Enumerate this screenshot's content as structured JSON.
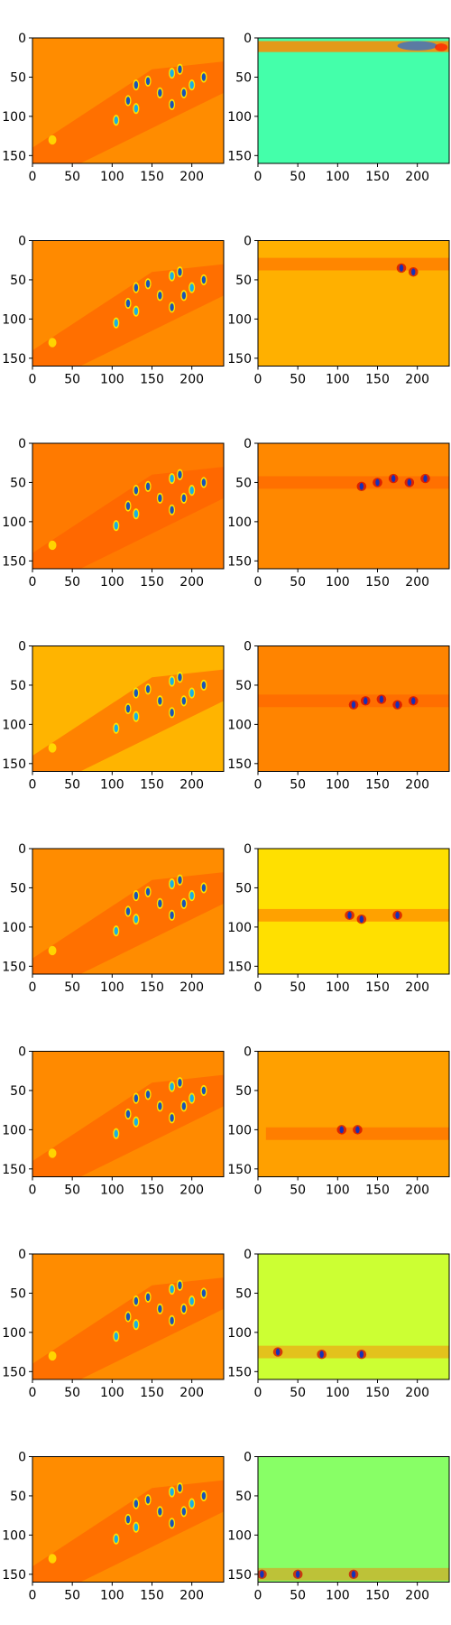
{
  "figure": {
    "rows": 8,
    "cols": 2,
    "colormap": "jet"
  },
  "chart_data": [
    {
      "row": 1,
      "col": 1,
      "type": "heatmap",
      "background": "#ff8c00",
      "xticks": [
        0,
        50,
        100,
        150,
        200
      ],
      "yticks": [
        0,
        50,
        100,
        150
      ],
      "xlim": [
        0,
        240
      ],
      "ylim": [
        160,
        0
      ]
    },
    {
      "row": 1,
      "col": 2,
      "type": "heatmap",
      "background": "#44ffaa",
      "xticks": [
        0,
        50,
        100,
        150,
        200
      ],
      "yticks": [
        0,
        50,
        100,
        150
      ],
      "xlim": [
        0,
        240
      ],
      "ylim": [
        160,
        0
      ]
    },
    {
      "row": 2,
      "col": 1,
      "type": "heatmap",
      "background": "#ff8a00",
      "xticks": [
        0,
        50,
        100,
        150,
        200
      ],
      "yticks": [
        0,
        50,
        100,
        150
      ],
      "xlim": [
        0,
        240
      ],
      "ylim": [
        160,
        0
      ]
    },
    {
      "row": 2,
      "col": 2,
      "type": "heatmap",
      "background": "#ffb000",
      "xticks": [
        0,
        50,
        100,
        150,
        200
      ],
      "yticks": [
        0,
        50,
        100,
        150
      ],
      "xlim": [
        0,
        240
      ],
      "ylim": [
        160,
        0
      ]
    },
    {
      "row": 3,
      "col": 1,
      "type": "heatmap",
      "background": "#ff7a00",
      "xticks": [
        0,
        50,
        100,
        150,
        200
      ],
      "yticks": [
        0,
        50,
        100,
        150
      ],
      "xlim": [
        0,
        240
      ],
      "ylim": [
        160,
        0
      ]
    },
    {
      "row": 3,
      "col": 2,
      "type": "heatmap",
      "background": "#ff8800",
      "xticks": [
        0,
        50,
        100,
        150,
        200
      ],
      "yticks": [
        0,
        50,
        100,
        150
      ],
      "xlim": [
        0,
        240
      ],
      "ylim": [
        160,
        0
      ]
    },
    {
      "row": 4,
      "col": 1,
      "type": "heatmap",
      "background": "#ffb400",
      "xticks": [
        0,
        50,
        100,
        150,
        200
      ],
      "yticks": [
        0,
        50,
        100,
        150
      ],
      "xlim": [
        0,
        240
      ],
      "ylim": [
        160,
        0
      ]
    },
    {
      "row": 4,
      "col": 2,
      "type": "heatmap",
      "background": "#ff8400",
      "xticks": [
        0,
        50,
        100,
        150,
        200
      ],
      "yticks": [
        0,
        50,
        100,
        150
      ],
      "xlim": [
        0,
        240
      ],
      "ylim": [
        160,
        0
      ]
    },
    {
      "row": 5,
      "col": 1,
      "type": "heatmap",
      "background": "#ff8c00",
      "xticks": [
        0,
        50,
        100,
        150,
        200
      ],
      "yticks": [
        0,
        50,
        100,
        150
      ],
      "xlim": [
        0,
        240
      ],
      "ylim": [
        160,
        0
      ]
    },
    {
      "row": 5,
      "col": 2,
      "type": "heatmap",
      "background": "#ffe000",
      "xticks": [
        0,
        50,
        100,
        150,
        200
      ],
      "yticks": [
        0,
        50,
        100,
        150
      ],
      "xlim": [
        0,
        240
      ],
      "ylim": [
        160,
        0
      ]
    },
    {
      "row": 6,
      "col": 1,
      "type": "heatmap",
      "background": "#ff8a00",
      "xticks": [
        0,
        50,
        100,
        150,
        200
      ],
      "yticks": [
        0,
        50,
        100,
        150
      ],
      "xlim": [
        0,
        240
      ],
      "ylim": [
        160,
        0
      ]
    },
    {
      "row": 6,
      "col": 2,
      "type": "heatmap",
      "background": "#ffa000",
      "xticks": [
        0,
        50,
        100,
        150,
        200
      ],
      "yticks": [
        0,
        50,
        100,
        150
      ],
      "xlim": [
        0,
        240
      ],
      "ylim": [
        160,
        0
      ]
    },
    {
      "row": 7,
      "col": 1,
      "type": "heatmap",
      "background": "#ff8c00",
      "xticks": [
        0,
        50,
        100,
        150,
        200
      ],
      "yticks": [
        0,
        50,
        100,
        150
      ],
      "xlim": [
        0,
        240
      ],
      "ylim": [
        160,
        0
      ]
    },
    {
      "row": 7,
      "col": 2,
      "type": "heatmap",
      "background": "#ccff33",
      "xticks": [
        0,
        50,
        100,
        150,
        200
      ],
      "yticks": [
        0,
        50,
        100,
        150
      ],
      "xlim": [
        0,
        240
      ],
      "ylim": [
        160,
        0
      ]
    },
    {
      "row": 8,
      "col": 1,
      "type": "heatmap",
      "background": "#ff8c00",
      "xticks": [
        0,
        50,
        100,
        150,
        200
      ],
      "yticks": [
        0,
        50,
        100,
        150
      ],
      "xlim": [
        0,
        240
      ],
      "ylim": [
        160,
        0
      ]
    },
    {
      "row": 8,
      "col": 2,
      "type": "heatmap",
      "background": "#88ff66",
      "xticks": [
        0,
        50,
        100,
        150,
        200
      ],
      "yticks": [
        0,
        50,
        100,
        150
      ],
      "xlim": [
        0,
        240
      ],
      "ylim": [
        160,
        0
      ]
    }
  ]
}
